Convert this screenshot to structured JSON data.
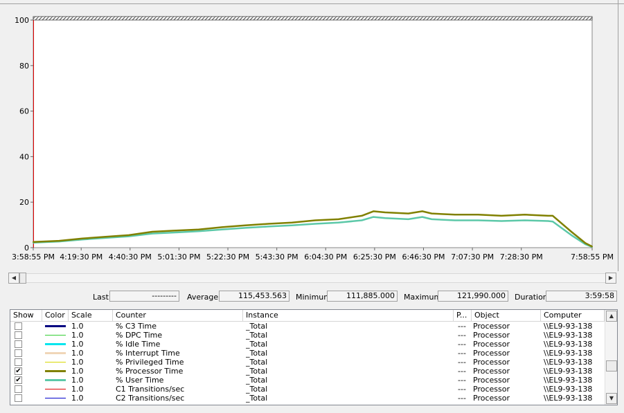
{
  "chart_data": {
    "type": "line",
    "ylim": [
      0,
      100
    ],
    "yticks": [
      "100",
      "80",
      "60",
      "40",
      "20",
      "0"
    ],
    "x_tick_labels": [
      "3:58:55 PM",
      "4:19:30 PM",
      "4:40:30 PM",
      "5:01:30 PM",
      "5:22:30 PM",
      "5:43:30 PM",
      "6:04:30 PM",
      "6:25:30 PM",
      "6:46:30 PM",
      "7:07:30 PM",
      "7:28:30 PM",
      "7:58:55 PM"
    ],
    "x_tick_times": [
      "15:58:55",
      "16:19:30",
      "16:40:30",
      "17:01:30",
      "17:22:30",
      "17:43:30",
      "18:04:30",
      "18:25:30",
      "18:46:30",
      "19:07:30",
      "19:28:30",
      "19:58:55"
    ],
    "x_times": [
      "15:58:55",
      "16:10:00",
      "16:20:00",
      "16:30:00",
      "16:40:00",
      "16:50:00",
      "17:00:00",
      "17:10:00",
      "17:20:00",
      "17:30:00",
      "17:40:00",
      "17:50:00",
      "18:00:00",
      "18:10:00",
      "18:20:00",
      "18:25:00",
      "18:30:00",
      "18:40:00",
      "18:46:00",
      "18:50:00",
      "19:00:00",
      "19:10:00",
      "19:20:00",
      "19:30:00",
      "19:40:00",
      "19:42:00",
      "19:50:00",
      "19:56:00",
      "19:58:55"
    ],
    "series": [
      {
        "name": "% Processor Time",
        "color": "#808000",
        "values": [
          2.5,
          3.0,
          4.0,
          4.8,
          5.5,
          7.0,
          7.5,
          8.0,
          9.0,
          9.8,
          10.5,
          11.0,
          12.0,
          12.5,
          14.0,
          16.0,
          15.5,
          15.0,
          16.0,
          15.0,
          14.5,
          14.5,
          14.0,
          14.5,
          14.0,
          14.0,
          7.0,
          2.0,
          0.5
        ]
      },
      {
        "name": "% User Time",
        "color": "#5cc8a8",
        "values": [
          2.2,
          2.7,
          3.6,
          4.3,
          5.0,
          6.2,
          6.7,
          7.2,
          8.0,
          8.7,
          9.3,
          9.8,
          10.5,
          11.0,
          12.0,
          13.5,
          13.0,
          12.5,
          13.5,
          12.5,
          12.0,
          12.0,
          11.7,
          12.0,
          11.7,
          11.5,
          5.5,
          1.5,
          0.3
        ]
      }
    ]
  },
  "stats": {
    "last_label": "Last",
    "last_value": "---------",
    "average_label": "Average",
    "average_value": "115,453.563",
    "minimum_label": "Minimum",
    "minimum_value": "111,885.000",
    "maximum_label": "Maximum",
    "maximum_value": "121,990.000",
    "duration_label": "Duration",
    "duration_value": "3:59:58"
  },
  "columns": [
    "Show",
    "Color",
    "Scale",
    "Counter",
    "Instance",
    "P...",
    "Object",
    "Computer"
  ],
  "counters": [
    {
      "show": false,
      "color": "#000080",
      "weight": 3,
      "scale": "1.0",
      "counter": "% C3 Time",
      "instance": "_Total",
      "parent": "---",
      "object": "Processor",
      "computer": "\\\\EL9-93-138"
    },
    {
      "show": false,
      "color": "#32cd32",
      "weight": 1,
      "scale": "1.0",
      "counter": "% DPC Time",
      "instance": "_Total",
      "parent": "---",
      "object": "Processor",
      "computer": "\\\\EL9-93-138"
    },
    {
      "show": false,
      "color": "#00e5ee",
      "weight": 3,
      "scale": "1.0",
      "counter": "% Idle Time",
      "instance": "_Total",
      "parent": "---",
      "object": "Processor",
      "computer": "\\\\EL9-93-138"
    },
    {
      "show": false,
      "color": "#f0d6b8",
      "weight": 3,
      "scale": "1.0",
      "counter": "% Interrupt Time",
      "instance": "_Total",
      "parent": "---",
      "object": "Processor",
      "computer": "\\\\EL9-93-138"
    },
    {
      "show": false,
      "color": "#d8d800",
      "weight": 1,
      "scale": "1.0",
      "counter": "% Privileged Time",
      "instance": "_Total",
      "parent": "---",
      "object": "Processor",
      "computer": "\\\\EL9-93-138"
    },
    {
      "show": true,
      "color": "#808000",
      "weight": 3,
      "scale": "1.0",
      "counter": "% Processor Time",
      "instance": "_Total",
      "parent": "---",
      "object": "Processor",
      "computer": "\\\\EL9-93-138"
    },
    {
      "show": true,
      "color": "#5cc8a8",
      "weight": 3,
      "scale": "1.0",
      "counter": "% User Time",
      "instance": "_Total",
      "parent": "---",
      "object": "Processor",
      "computer": "\\\\EL9-93-138"
    },
    {
      "show": false,
      "color": "#e00000",
      "weight": 1,
      "scale": "1.0",
      "counter": "C1 Transitions/sec",
      "instance": "_Total",
      "parent": "---",
      "object": "Processor",
      "computer": "\\\\EL9-93-138"
    },
    {
      "show": false,
      "color": "#0000cc",
      "weight": 1,
      "scale": "1.0",
      "counter": "C2 Transitions/sec",
      "instance": "_Total",
      "parent": "---",
      "object": "Processor",
      "computer": "\\\\EL9-93-138"
    }
  ],
  "icons": {
    "scroll_left": "◀",
    "scroll_right": "▶",
    "scroll_up": "▲",
    "scroll_down": "▼",
    "check": "✔"
  }
}
